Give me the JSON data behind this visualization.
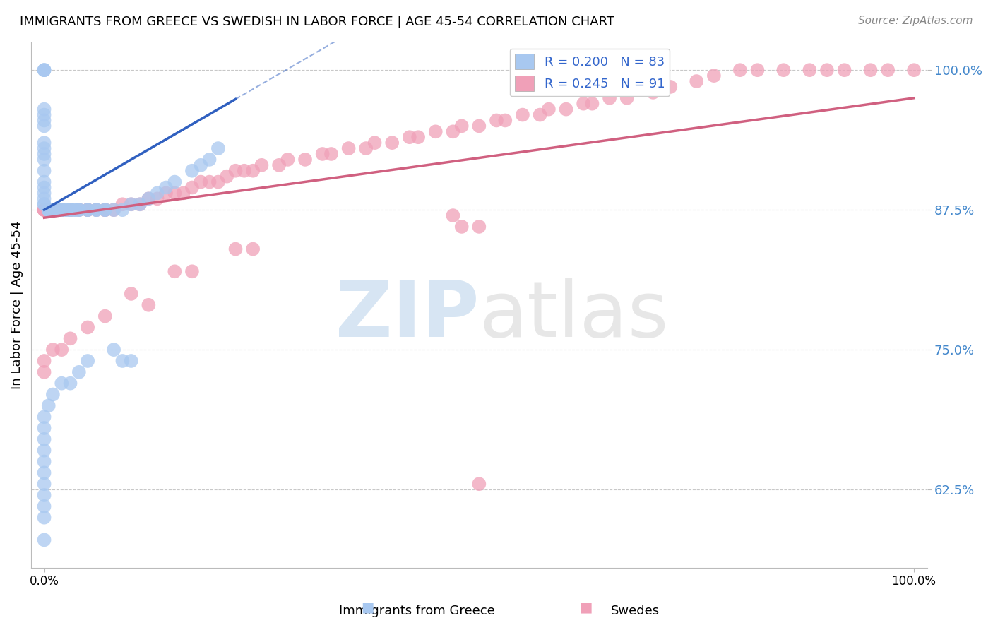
{
  "title": "IMMIGRANTS FROM GREECE VS SWEDISH IN LABOR FORCE | AGE 45-54 CORRELATION CHART",
  "source": "Source: ZipAtlas.com",
  "ylabel": "In Labor Force | Age 45-54",
  "ylim": [
    0.555,
    1.025
  ],
  "xlim": [
    -0.015,
    1.015
  ],
  "R_blue": 0.2,
  "N_blue": 83,
  "R_pink": 0.245,
  "N_pink": 91,
  "legend_labels": [
    "Immigrants from Greece",
    "Swedes"
  ],
  "blue_color": "#a8c8f0",
  "pink_color": "#f0a0b8",
  "blue_line_color": "#3060c0",
  "pink_line_color": "#d06080",
  "watermark_zip": "ZIP",
  "watermark_atlas": "atlas",
  "background_color": "#ffffff",
  "grid_color": "#c8c8c8",
  "ytick_vals": [
    0.625,
    0.75,
    0.875,
    1.0
  ],
  "ytick_labels": [
    "62.5%",
    "75.0%",
    "87.5%",
    "100.0%"
  ],
  "blue_x": [
    0.0,
    0.0,
    0.0,
    0.0,
    0.0,
    0.0,
    0.0,
    0.0,
    0.0,
    0.0,
    0.0,
    0.0,
    0.0,
    0.0,
    0.0,
    0.0,
    0.0,
    0.0,
    0.005,
    0.005,
    0.005,
    0.005,
    0.005,
    0.005,
    0.01,
    0.01,
    0.01,
    0.01,
    0.01,
    0.01,
    0.012,
    0.012,
    0.015,
    0.015,
    0.02,
    0.02,
    0.02,
    0.025,
    0.025,
    0.03,
    0.03,
    0.035,
    0.035,
    0.04,
    0.04,
    0.05,
    0.05,
    0.06,
    0.06,
    0.07,
    0.07,
    0.08,
    0.09,
    0.1,
    0.11,
    0.12,
    0.13,
    0.14,
    0.15,
    0.17,
    0.18,
    0.19,
    0.2,
    0.08,
    0.09,
    0.1,
    0.05,
    0.04,
    0.03,
    0.02,
    0.01,
    0.005,
    0.0,
    0.0,
    0.0,
    0.0,
    0.0,
    0.0,
    0.0,
    0.0,
    0.0,
    0.0,
    0.0
  ],
  "blue_y": [
    1.0,
    1.0,
    1.0,
    0.965,
    0.96,
    0.955,
    0.95,
    0.935,
    0.93,
    0.925,
    0.92,
    0.91,
    0.9,
    0.895,
    0.89,
    0.885,
    0.88,
    0.88,
    0.875,
    0.875,
    0.875,
    0.875,
    0.875,
    0.875,
    0.875,
    0.875,
    0.875,
    0.875,
    0.875,
    0.875,
    0.875,
    0.875,
    0.875,
    0.875,
    0.875,
    0.875,
    0.875,
    0.875,
    0.875,
    0.875,
    0.875,
    0.875,
    0.875,
    0.875,
    0.875,
    0.875,
    0.875,
    0.875,
    0.875,
    0.875,
    0.875,
    0.875,
    0.875,
    0.88,
    0.88,
    0.885,
    0.89,
    0.895,
    0.9,
    0.91,
    0.915,
    0.92,
    0.93,
    0.75,
    0.74,
    0.74,
    0.74,
    0.73,
    0.72,
    0.72,
    0.71,
    0.7,
    0.69,
    0.68,
    0.67,
    0.66,
    0.65,
    0.64,
    0.63,
    0.62,
    0.61,
    0.6,
    0.58
  ],
  "pink_x": [
    0.0,
    0.0,
    0.0,
    0.0,
    0.005,
    0.005,
    0.01,
    0.01,
    0.02,
    0.02,
    0.03,
    0.03,
    0.04,
    0.05,
    0.05,
    0.06,
    0.07,
    0.07,
    0.08,
    0.09,
    0.1,
    0.11,
    0.12,
    0.13,
    0.14,
    0.15,
    0.16,
    0.17,
    0.18,
    0.19,
    0.2,
    0.21,
    0.22,
    0.23,
    0.24,
    0.25,
    0.27,
    0.28,
    0.3,
    0.32,
    0.33,
    0.35,
    0.37,
    0.38,
    0.4,
    0.42,
    0.43,
    0.45,
    0.47,
    0.48,
    0.5,
    0.52,
    0.53,
    0.55,
    0.57,
    0.58,
    0.6,
    0.62,
    0.63,
    0.65,
    0.67,
    0.7,
    0.72,
    0.75,
    0.77,
    0.8,
    0.82,
    0.85,
    0.88,
    0.9,
    0.92,
    0.95,
    0.97,
    1.0,
    0.47,
    0.48,
    0.5,
    0.22,
    0.24,
    0.15,
    0.17,
    0.1,
    0.12,
    0.07,
    0.05,
    0.03,
    0.02,
    0.01,
    0.0,
    0.0,
    0.5
  ],
  "pink_y": [
    0.875,
    0.875,
    0.875,
    0.875,
    0.875,
    0.875,
    0.875,
    0.875,
    0.875,
    0.875,
    0.875,
    0.875,
    0.875,
    0.875,
    0.875,
    0.875,
    0.875,
    0.875,
    0.875,
    0.88,
    0.88,
    0.88,
    0.885,
    0.885,
    0.89,
    0.89,
    0.89,
    0.895,
    0.9,
    0.9,
    0.9,
    0.905,
    0.91,
    0.91,
    0.91,
    0.915,
    0.915,
    0.92,
    0.92,
    0.925,
    0.925,
    0.93,
    0.93,
    0.935,
    0.935,
    0.94,
    0.94,
    0.945,
    0.945,
    0.95,
    0.95,
    0.955,
    0.955,
    0.96,
    0.96,
    0.965,
    0.965,
    0.97,
    0.97,
    0.975,
    0.975,
    0.98,
    0.985,
    0.99,
    0.995,
    1.0,
    1.0,
    1.0,
    1.0,
    1.0,
    1.0,
    1.0,
    1.0,
    1.0,
    0.87,
    0.86,
    0.86,
    0.84,
    0.84,
    0.82,
    0.82,
    0.8,
    0.79,
    0.78,
    0.77,
    0.76,
    0.75,
    0.75,
    0.74,
    0.73,
    0.63
  ]
}
